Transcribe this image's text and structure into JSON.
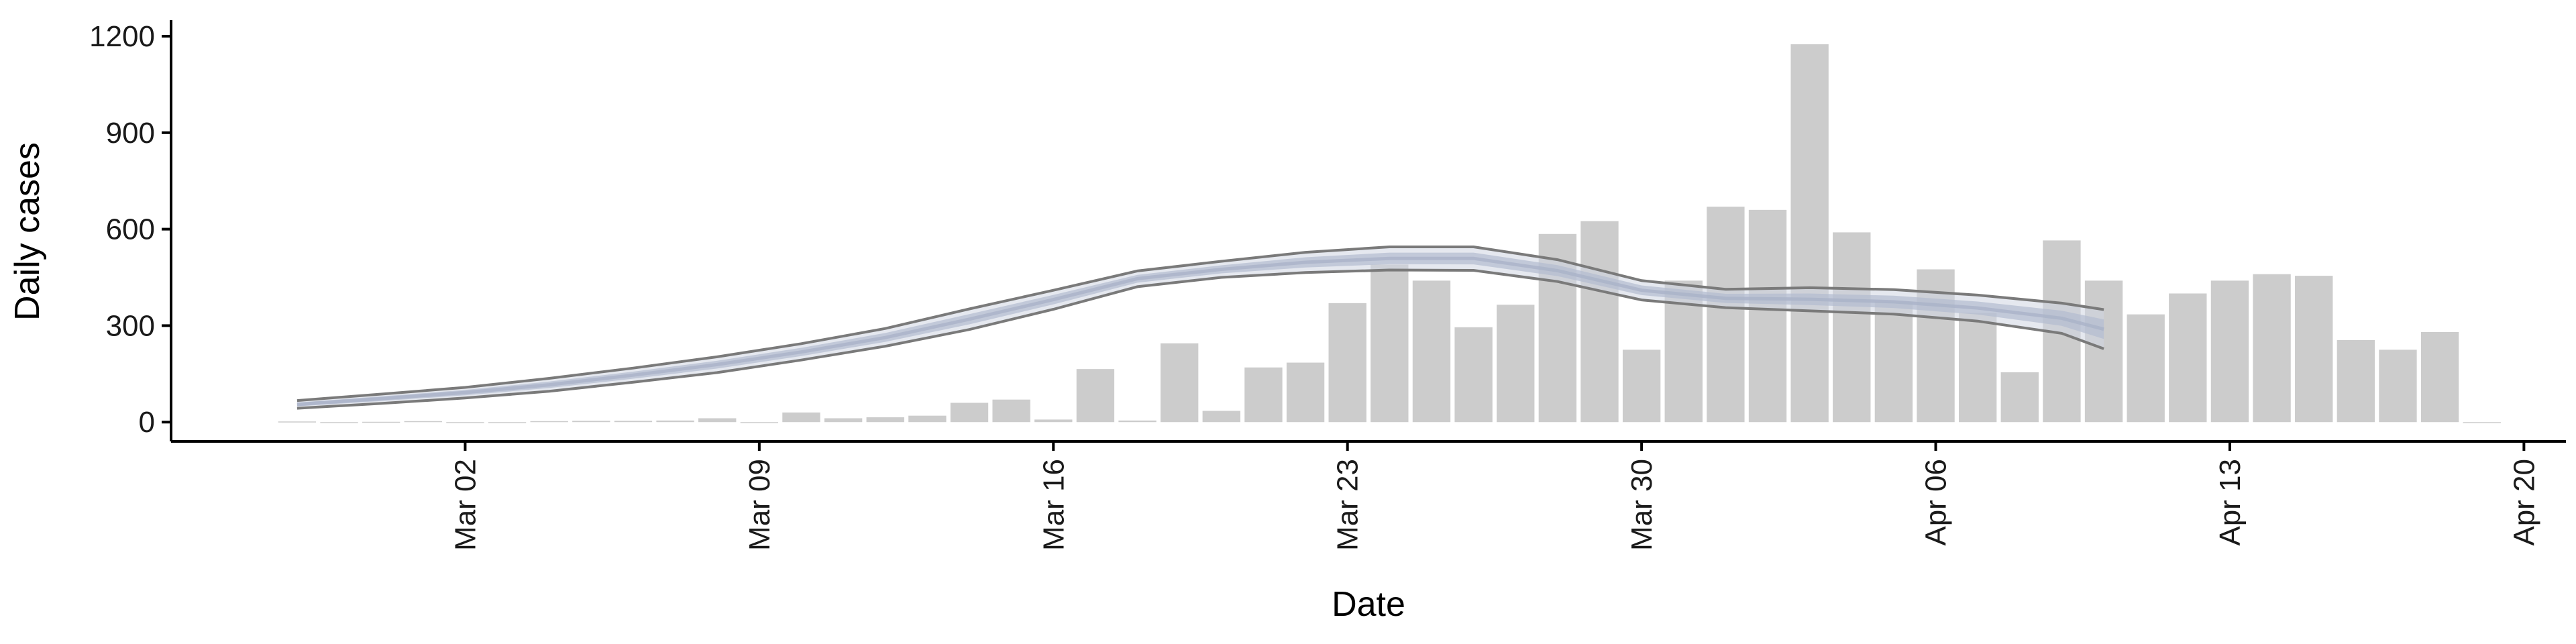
{
  "chart_data": {
    "type": "bar",
    "xlabel": "Date",
    "ylabel": "Daily cases",
    "ylim": [
      -60,
      1250
    ],
    "yticks": [
      0,
      300,
      600,
      900,
      1200
    ],
    "xticks": [
      "Mar 02",
      "Mar 09",
      "Mar 16",
      "Mar 23",
      "Mar 30",
      "Apr 06",
      "Apr 13",
      "Apr 20"
    ],
    "xlim": [
      "2020-02-24",
      "2020-04-21"
    ],
    "grid": false,
    "legend": "none",
    "colors": {
      "bars": "#cccccc",
      "ribbon_outer": "#cfd5e2",
      "ribbon_inner": "#b4bcd0",
      "bound_lines": "#7a7a7a",
      "axis": "#000000"
    },
    "series": [
      {
        "type": "bar",
        "x": [
          "2020-02-27",
          "2020-02-28",
          "2020-02-29",
          "2020-03-01",
          "2020-03-02",
          "2020-03-03",
          "2020-03-04",
          "2020-03-05",
          "2020-03-06",
          "2020-03-07",
          "2020-03-08",
          "2020-03-09",
          "2020-03-10",
          "2020-03-11",
          "2020-03-12",
          "2020-03-13",
          "2020-03-14",
          "2020-03-15",
          "2020-03-16",
          "2020-03-17",
          "2020-03-18",
          "2020-03-19",
          "2020-03-20",
          "2020-03-21",
          "2020-03-22",
          "2020-03-23",
          "2020-03-24",
          "2020-03-25",
          "2020-03-26",
          "2020-03-27",
          "2020-03-28",
          "2020-03-29",
          "2020-03-30",
          "2020-03-31",
          "2020-04-01",
          "2020-04-02",
          "2020-04-03",
          "2020-04-04",
          "2020-04-05",
          "2020-04-06",
          "2020-04-07",
          "2020-04-08",
          "2020-04-09",
          "2020-04-10",
          "2020-04-11",
          "2020-04-12",
          "2020-04-13",
          "2020-04-14",
          "2020-04-15",
          "2020-04-16",
          "2020-04-17",
          "2020-04-18",
          "2020-04-19"
        ],
        "values": [
          2,
          0,
          1,
          3,
          0,
          0,
          3,
          4,
          4,
          5,
          12,
          0,
          30,
          12,
          15,
          20,
          60,
          70,
          8,
          165,
          5,
          245,
          35,
          170,
          185,
          370,
          490,
          440,
          295,
          365,
          585,
          625,
          225,
          440,
          670,
          660,
          1175,
          590,
          375,
          475,
          340,
          155,
          565,
          440,
          335,
          400,
          440,
          460,
          455,
          255,
          225,
          280,
          0
        ]
      },
      {
        "type": "band",
        "name": "",
        "x": [
          "2020-02-27",
          "2020-02-29",
          "2020-03-02",
          "2020-03-04",
          "2020-03-06",
          "2020-03-08",
          "2020-03-10",
          "2020-03-12",
          "2020-03-14",
          "2020-03-16",
          "2020-03-18",
          "2020-03-20",
          "2020-03-22",
          "2020-03-24",
          "2020-03-26",
          "2020-03-28",
          "2020-03-30",
          "2020-04-01",
          "2020-04-03",
          "2020-04-05",
          "2020-04-07",
          "2020-04-09",
          "2020-04-10"
        ],
        "upper": [
          67,
          87,
          108,
          136,
          168,
          203,
          244,
          291,
          352,
          410,
          470,
          500,
          528,
          545,
          545,
          505,
          440,
          413,
          418,
          412,
          395,
          370,
          350
        ],
        "lower": [
          43,
          58,
          75,
          96,
          124,
          154,
          193,
          236,
          288,
          351,
          421,
          450,
          465,
          473,
          472,
          437,
          380,
          356,
          346,
          336,
          314,
          276,
          228
        ],
        "mean": [
          55,
          73,
          92,
          116,
          146,
          179,
          218,
          263,
          320,
          381,
          446,
          475,
          497,
          509,
          509,
          471,
          410,
          385,
          382,
          374,
          355,
          323,
          289
        ]
      }
    ]
  }
}
